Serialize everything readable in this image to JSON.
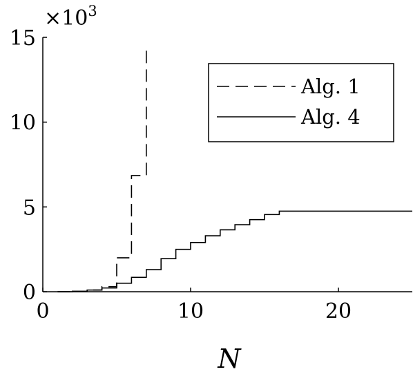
{
  "chart_data": {
    "type": "line",
    "title": "",
    "xlabel": "N",
    "ylabel": "",
    "xlim": [
      0,
      25
    ],
    "ylim": [
      0,
      15000
    ],
    "y_multiplier_label": "×10",
    "y_multiplier_exponent": "3",
    "xticks": [
      0,
      10,
      20
    ],
    "xtick_labels": [
      "0",
      "10",
      "20"
    ],
    "yticks": [
      0,
      5000,
      10000,
      15000
    ],
    "ytick_labels": [
      "0",
      "5",
      "10",
      "15"
    ],
    "grid": false,
    "legend_position": "top-right",
    "series": [
      {
        "name": "Alg. 1",
        "style": "dashed",
        "step": "post",
        "x": [
          1,
          2,
          3,
          4,
          5,
          6,
          7
        ],
        "y": [
          0,
          30,
          100,
          300,
          2000,
          6850,
          14500
        ]
      },
      {
        "name": "Alg. 4",
        "style": "solid",
        "step": "post",
        "x": [
          1,
          2,
          3,
          4,
          5,
          6,
          7,
          8,
          9,
          10,
          11,
          12,
          13,
          14,
          15,
          16,
          17,
          18,
          19,
          20,
          21,
          22,
          23,
          24,
          25
        ],
        "y": [
          0,
          30,
          100,
          220,
          500,
          850,
          1300,
          1950,
          2500,
          2900,
          3300,
          3650,
          3950,
          4250,
          4550,
          4750,
          4750,
          4750,
          4750,
          4750,
          4750,
          4750,
          4750,
          4750,
          4750
        ]
      }
    ]
  }
}
